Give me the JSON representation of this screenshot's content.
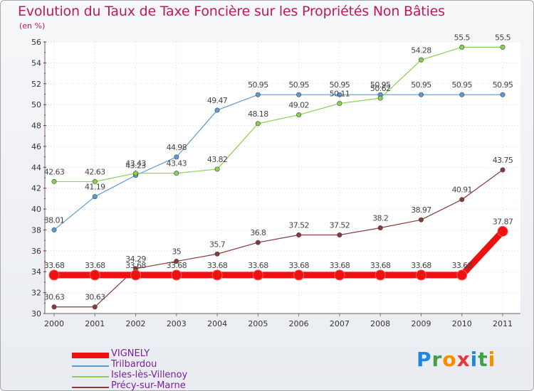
{
  "chart_data": {
    "type": "line",
    "title": "Evolution du Taux de Taxe Foncière sur les Propriétés Non Bâties",
    "units": "(en %)",
    "xlabel": "",
    "ylabel": "",
    "categories": [
      "2000",
      "2001",
      "2002",
      "2003",
      "2004",
      "2005",
      "2006",
      "2007",
      "2008",
      "2009",
      "2010",
      "2011"
    ],
    "ylim": [
      30,
      56
    ],
    "yticks": [
      "30",
      "32",
      "34",
      "36",
      "38",
      "40",
      "42",
      "44",
      "46",
      "48",
      "50",
      "52",
      "54",
      "56"
    ],
    "series": [
      {
        "name": "VIGNELY",
        "color": "#ee1111",
        "values": [
          33.68,
          33.68,
          33.68,
          33.68,
          33.68,
          33.68,
          33.68,
          33.68,
          33.68,
          33.68,
          33.68,
          37.87
        ],
        "labels": [
          "33.68",
          "33.68",
          "33.68",
          "33.68",
          "33.68",
          "33.68",
          "33.68",
          "33.68",
          "33.68",
          "33.68",
          "33.68",
          "37.87"
        ]
      },
      {
        "name": "Trilbardou",
        "color": "#5b9bd5",
        "values": [
          38.01,
          41.19,
          43.23,
          44.98,
          49.47,
          50.95,
          50.95,
          50.95,
          50.95,
          50.95,
          50.95,
          50.95
        ],
        "labels": [
          "38.01",
          "41.19",
          "43.23",
          "44.98",
          "49.47",
          "50.95",
          "50.95",
          "50.95",
          "50.95",
          "50.95",
          "50.95",
          "50.95"
        ]
      },
      {
        "name": "Isles-lès-Villenoy",
        "color": "#88d050",
        "values": [
          42.63,
          42.63,
          43.43,
          43.43,
          43.82,
          48.18,
          49.02,
          50.11,
          50.62,
          54.28,
          55.5,
          55.5
        ],
        "labels": [
          "42.63",
          "42.63",
          "43.43",
          "43.43",
          "43.82",
          "48.18",
          "49.02",
          "50.11",
          "50.62",
          "54.28",
          "55.5",
          "55.5"
        ]
      },
      {
        "name": "Précy-sur-Marne",
        "color": "#8b3a3a",
        "values": [
          30.63,
          30.63,
          34.29,
          35.0,
          35.7,
          36.8,
          37.52,
          37.52,
          38.2,
          38.97,
          40.91,
          43.75
        ],
        "labels": [
          "30.63",
          "30.63",
          "34.29",
          "35",
          "35.7",
          "36.8",
          "37.52",
          "37.52",
          "38.2",
          "38.97",
          "40.91",
          "43.75"
        ]
      }
    ]
  },
  "brand": {
    "text": "Proxiti",
    "letters": [
      "P",
      "r",
      "o",
      "x",
      "i",
      "t",
      "i"
    ],
    "colors": [
      "#1e88e5",
      "#43a047",
      "#fb8c00",
      "#e53935",
      "#1e88e5",
      "#43a047",
      "#fb8c00"
    ]
  }
}
